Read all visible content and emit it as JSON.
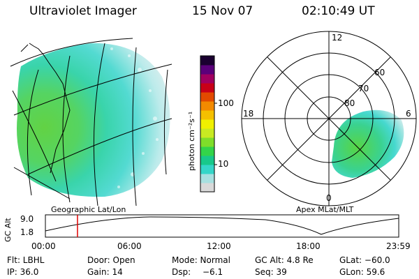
{
  "header": {
    "instrument": "Ultraviolet Imager",
    "date": "15 Nov 07",
    "time": "02:10:49 UT"
  },
  "colorbar": {
    "label": "photon cm⁻²s⁻¹",
    "ticks": [
      "100",
      "10"
    ],
    "colors": [
      "#d9d9d9",
      "#a8e0e0",
      "#35d6c8",
      "#18c88a",
      "#33d44a",
      "#7fde2a",
      "#c8ea22",
      "#f0f000",
      "#f5c000",
      "#f38a00",
      "#e24a00",
      "#c80018",
      "#a00060",
      "#5a007a",
      "#1a0030"
    ]
  },
  "geo_map": {
    "label": "Geographic Lat/Lon"
  },
  "polar_plot": {
    "label": "Apex MLat/MLT",
    "mlt_labels": [
      "12",
      "18",
      "6",
      "0"
    ],
    "lat_labels": [
      "60",
      "70",
      "80"
    ]
  },
  "altitude_plot": {
    "ylabel": "GC Alt",
    "yticks": [
      "9.0",
      "1.8"
    ],
    "xticks": [
      "00:00",
      "06:00",
      "12:00",
      "18:00",
      "23:59"
    ],
    "marker_time_hours": 2.18
  },
  "status": {
    "filter": "Flt: LBHL",
    "door": "Door: Open",
    "mode": "Mode: Normal",
    "gc_alt": "GC Alt: 4.8 Re",
    "glat": "GLat: −60.0",
    "ip": "IP: 36.0",
    "gain": "Gain: 14",
    "dsp_label": "Dsp:",
    "dsp_value": "−6.1",
    "seq": "Seq: 39",
    "glon": "GLon:  59.6"
  }
}
